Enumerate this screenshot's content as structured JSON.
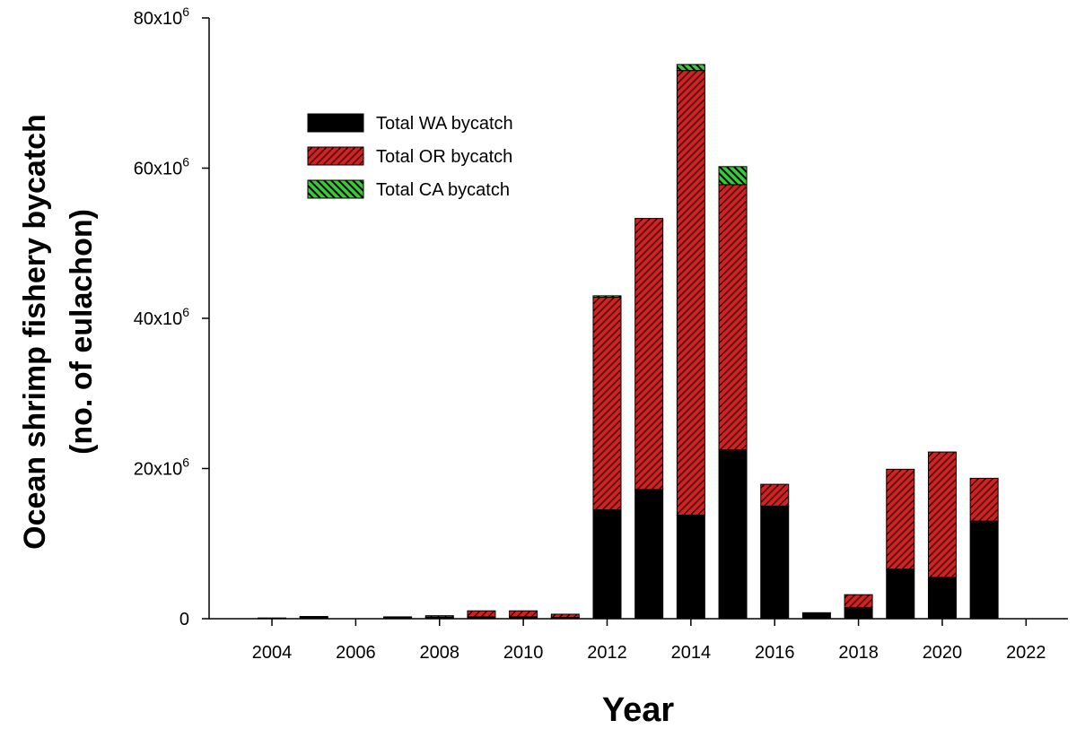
{
  "chart_data": {
    "type": "bar",
    "stacked": true,
    "xlabel": "Year",
    "ylabel_line1": "Ocean shrimp fishery  bycatch",
    "ylabel_line2": "(no. of eulachon)",
    "xlim": [
      2002.5,
      2023
    ],
    "ylim": [
      0,
      80000000
    ],
    "x_ticks": [
      2004,
      2006,
      2008,
      2010,
      2012,
      2014,
      2016,
      2018,
      2020,
      2022
    ],
    "y_ticks": [
      {
        "value": 0,
        "base": "0",
        "exp": ""
      },
      {
        "value": 20000000,
        "base": "20x10",
        "exp": "6"
      },
      {
        "value": 40000000,
        "base": "40x10",
        "exp": "6"
      },
      {
        "value": 60000000,
        "base": "60x10",
        "exp": "6"
      },
      {
        "value": 80000000,
        "base": "80x10",
        "exp": "6"
      }
    ],
    "legend_position": "top-left",
    "years": [
      2004,
      2005,
      2006,
      2007,
      2008,
      2009,
      2010,
      2011,
      2012,
      2013,
      2014,
      2015,
      2016,
      2017,
      2018,
      2019,
      2020,
      2021
    ],
    "series": [
      {
        "name": "Total WA bycatch",
        "color": "#000000",
        "pattern": "solid",
        "values": [
          100000,
          200000,
          0,
          200000,
          200000,
          250000,
          250000,
          150000,
          14500000,
          17200000,
          13800000,
          22500000,
          15000000,
          800000,
          1500000,
          6600000,
          5500000,
          13000000
        ]
      },
      {
        "name": "Total OR bycatch",
        "color": "#d42020",
        "pattern": "diagonal-hatch",
        "values": [
          0,
          100000,
          0,
          50000,
          200000,
          800000,
          800000,
          450000,
          28300000,
          36100000,
          59200000,
          35300000,
          2900000,
          0,
          1700000,
          13300000,
          16700000,
          5700000
        ]
      },
      {
        "name": "Total CA bycatch",
        "color": "#3ec43e",
        "pattern": "reverse-hatch",
        "values": [
          0,
          0,
          0,
          0,
          0,
          0,
          0,
          0,
          200000,
          0,
          800000,
          2400000,
          0,
          0,
          0,
          0,
          0,
          0
        ]
      }
    ]
  }
}
